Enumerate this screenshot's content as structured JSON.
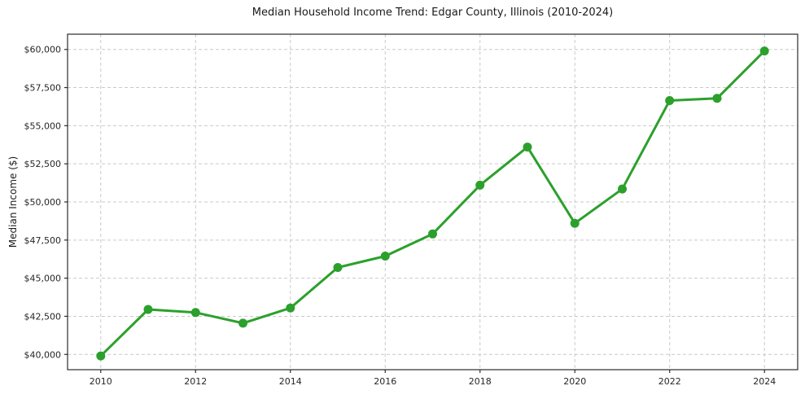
{
  "chart_data": {
    "type": "line",
    "title": "Median Household Income Trend: Edgar County, Illinois (2010-2024)",
    "xlabel": "",
    "ylabel": "Median Income ($)",
    "series": [
      {
        "name": "Median Household Income",
        "x": [
          2010,
          2011,
          2012,
          2013,
          2014,
          2015,
          2016,
          2017,
          2018,
          2019,
          2020,
          2021,
          2022,
          2023,
          2024
        ],
        "values": [
          39900,
          42950,
          42750,
          42050,
          43050,
          45700,
          46450,
          47900,
          51100,
          53600,
          48600,
          50850,
          56650,
          56800,
          59900
        ],
        "color": "#2ca02c",
        "marker": "circle",
        "marker_diameter": 11,
        "line_width": 3
      }
    ],
    "xlim": [
      2009.3,
      2024.7
    ],
    "ylim": [
      39000,
      61000
    ],
    "xticks": {
      "values": [
        2010,
        2012,
        2014,
        2016,
        2018,
        2020,
        2022,
        2024
      ],
      "labels": [
        "2010",
        "2012",
        "2014",
        "2016",
        "2018",
        "2020",
        "2022",
        "2024"
      ]
    },
    "yticks": {
      "values": [
        40000,
        42500,
        45000,
        47500,
        50000,
        52500,
        55000,
        57500,
        60000
      ],
      "labels": [
        "$40,000",
        "$42,500",
        "$45,000",
        "$47,500",
        "$50,000",
        "$52,500",
        "$55,000",
        "$57,500",
        "$60,000"
      ]
    },
    "grid": {
      "show": true,
      "style": "dashed",
      "color": "#c9c9c9"
    },
    "legend": {
      "show": false
    },
    "background": "#ffffff",
    "spine_color": "#2b2b2b",
    "tick_color": "#2b2b2b",
    "text_color": "#262626"
  }
}
